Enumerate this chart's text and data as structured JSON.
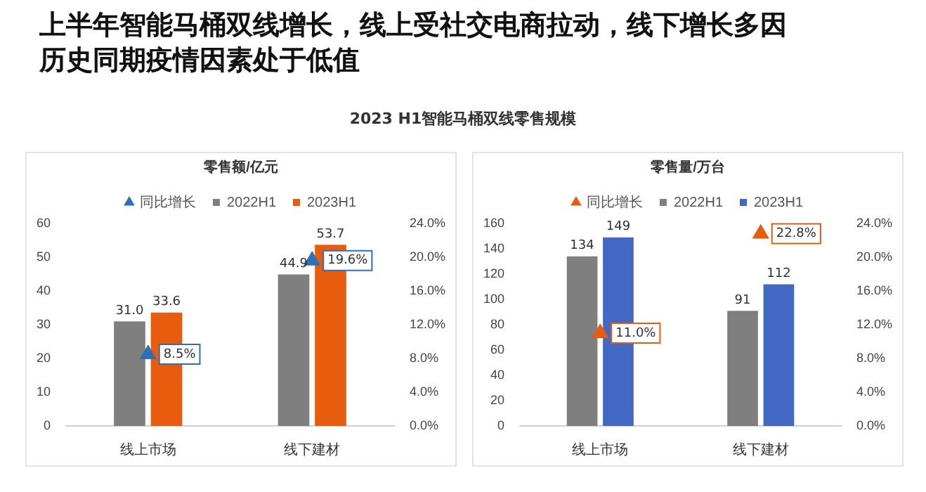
{
  "chart_data": [
    {
      "type": "other",
      "title": "上半年智能马桶双线增长，线上受社交电商拉动，线下增长多因历史同期疫情因素处于低值",
      "subtitle": "2023 H1智能马桶双线零售规模"
    },
    {
      "type": "bar",
      "title": "零售额/亿元",
      "categories": [
        "线上市场",
        "线下建材"
      ],
      "series": [
        {
          "name": "2022H1",
          "color": "#7f7f7f",
          "values": [
            31.0,
            44.9
          ],
          "value_labels": [
            "31.0",
            "44.9"
          ]
        },
        {
          "name": "2023H1",
          "color": "#e85c0d",
          "values": [
            33.6,
            53.7
          ],
          "value_labels": [
            "33.6",
            "53.7"
          ]
        },
        {
          "name": "同比增长",
          "type": "scatter",
          "axis": "y2",
          "color": "#2e6fb7",
          "values": [
            8.5,
            19.6
          ],
          "value_labels": [
            "8.5%",
            "19.6%"
          ]
        }
      ],
      "ylim": [
        0,
        60
      ],
      "yticks": [
        0,
        10,
        20,
        30,
        40,
        50,
        60
      ],
      "y2lim": [
        0,
        24
      ],
      "y2ticks": [
        {
          "value": 0,
          "label": "0.0%"
        },
        {
          "value": 4,
          "label": "4.0%"
        },
        {
          "value": 8,
          "label": "8.0%"
        },
        {
          "value": 12,
          "label": "12.0%"
        },
        {
          "value": 16,
          "label": "16.0%"
        },
        {
          "value": 20,
          "label": "20.0%"
        },
        {
          "value": 24,
          "label": "24.0%"
        }
      ],
      "marker": "triangle",
      "legend": "top",
      "grid": false
    },
    {
      "type": "bar",
      "title": "零售量/万台",
      "categories": [
        "线上市场",
        "线下建材"
      ],
      "series": [
        {
          "name": "2022H1",
          "color": "#7f7f7f",
          "values": [
            134,
            91
          ],
          "value_labels": [
            "134",
            "91"
          ]
        },
        {
          "name": "2023H1",
          "color": "#4169c4",
          "values": [
            149,
            112
          ],
          "value_labels": [
            "149",
            "112"
          ]
        },
        {
          "name": "同比增长",
          "type": "scatter",
          "axis": "y2",
          "color": "#e85c0d",
          "values": [
            11.0,
            22.8
          ],
          "value_labels": [
            "11.0%",
            "22.8%"
          ]
        }
      ],
      "ylim": [
        0,
        160
      ],
      "yticks": [
        0,
        20,
        40,
        60,
        80,
        100,
        120,
        140,
        160
      ],
      "y2lim": [
        0,
        24
      ],
      "y2ticks": [
        {
          "value": 0,
          "label": "0.0%"
        },
        {
          "value": 4,
          "label": "4.0%"
        },
        {
          "value": 8,
          "label": "8.0%"
        },
        {
          "value": 12,
          "label": "12.0%"
        },
        {
          "value": 16,
          "label": "16.0%"
        },
        {
          "value": 20,
          "label": "20.0%"
        },
        {
          "value": 24,
          "label": "24.0%"
        }
      ],
      "marker": "triangle",
      "legend": "top",
      "grid": false
    }
  ]
}
